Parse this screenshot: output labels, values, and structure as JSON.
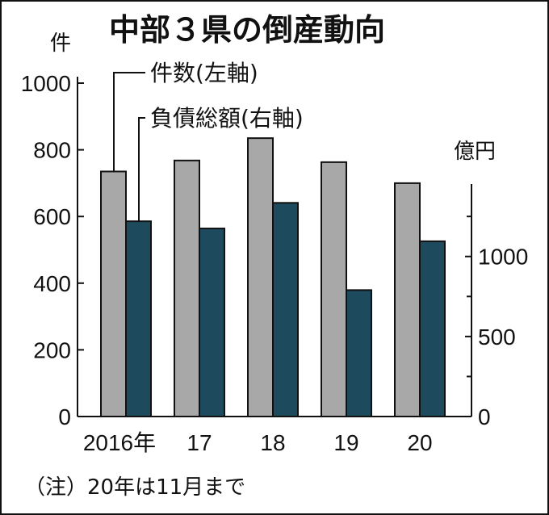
{
  "title": "中部３県の倒産動向",
  "note": "（注）20年は11月まで",
  "chart_data": {
    "type": "bar",
    "title": "中部３県の倒産動向",
    "categories": [
      "2016年",
      "17",
      "18",
      "19",
      "20"
    ],
    "series": [
      {
        "name": "件数(左軸)",
        "axis": "left",
        "color": "#a8a8a8",
        "values": [
          735,
          768,
          835,
          763,
          700
        ]
      },
      {
        "name": "負債総額(右軸)",
        "axis": "right",
        "color": "#1d4a5c",
        "values": [
          1220,
          1175,
          1335,
          790,
          1095
        ]
      }
    ],
    "y_left": {
      "label": "件",
      "range": [
        0,
        1000
      ],
      "ticks": [
        0,
        200,
        400,
        600,
        800,
        1000
      ]
    },
    "y_right": {
      "label": "億円",
      "range": [
        0,
        2083
      ],
      "ticks": [
        0,
        500,
        1000
      ]
    },
    "grid": false,
    "legend": "top-left"
  }
}
